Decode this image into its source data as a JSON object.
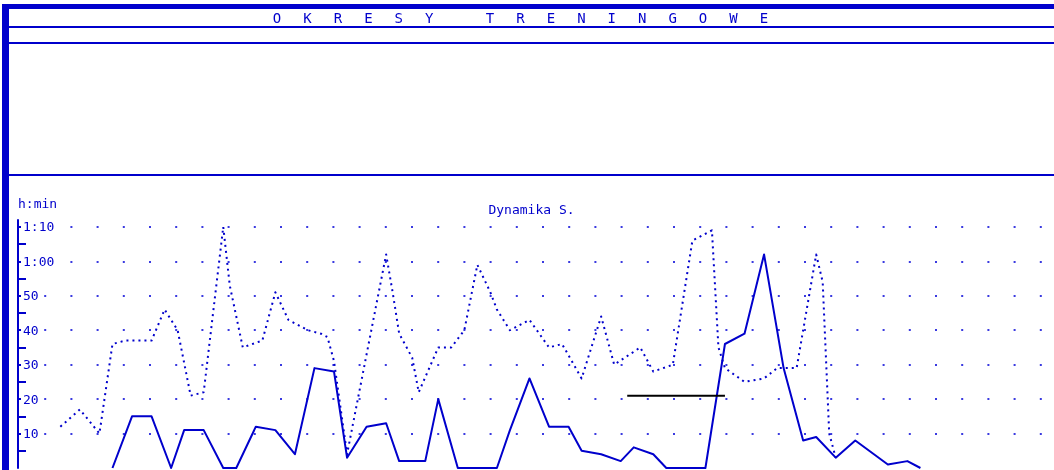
{
  "chart_data": {
    "type": "line",
    "title": "OKRESY TRENINGOWE",
    "subtitle": "Dynamika S.",
    "ylabel": "h:min",
    "categories": [
      null,
      null,
      null,
      null,
      null,
      null,
      null,
      null,
      null,
      null,
      null,
      null,
      null,
      null,
      null,
      null,
      null,
      null,
      null,
      null,
      null,
      null,
      null,
      null,
      null,
      null,
      null,
      null,
      null,
      null,
      null,
      null,
      null,
      null,
      null,
      null,
      null,
      null,
      null,
      null,
      null,
      null,
      null,
      null,
      null,
      null,
      null,
      null,
      null,
      null,
      null,
      null,
      null,
      null,
      null,
      null,
      null,
      null,
      null,
      null,
      null,
      null,
      null,
      null,
      null,
      null,
      null,
      null,
      null,
      null,
      null,
      null,
      null,
      null,
      null,
      null,
      null,
      null,
      null,
      null,
      null,
      null,
      null,
      null,
      null,
      null,
      null,
      null,
      null,
      null,
      null,
      null,
      null,
      null,
      null,
      null,
      null,
      null,
      null,
      null,
      null,
      null,
      null,
      null,
      null,
      null,
      null,
      null,
      null,
      null,
      null,
      null,
      null,
      null,
      null,
      null,
      null,
      null,
      null,
      null,
      null,
      null,
      null,
      null,
      null,
      null,
      null,
      null,
      null,
      null,
      null,
      null,
      null,
      null,
      null,
      null,
      null,
      null,
      null,
      null,
      null,
      null,
      null,
      null,
      null,
      null,
      null,
      null,
      null,
      null,
      null,
      null,
      null,
      null,
      null,
      null,
      null,
      null,
      null
    ],
    "ylim": [
      0,
      72
    ],
    "yticks": [
      {
        "value": 5,
        "label": null
      },
      10,
      {
        "value": 15,
        "label": null
      },
      20,
      {
        "value": 25,
        "label": null
      },
      30,
      {
        "value": 35,
        "label": null
      },
      40,
      {
        "value": 45,
        "label": null
      },
      50,
      {
        "value": 55,
        "label": null
      },
      {
        "value": 60,
        "label": "1:00"
      },
      {
        "value": 65,
        "label": null
      },
      {
        "value": 70,
        "label": "1:10"
      }
    ],
    "tick_labels": "y",
    "grid": "y",
    "series": [
      {
        "color": "#0000cc",
        "line_style": "dotted",
        "values": [
          null,
          null,
          null,
          null,
          null,
          null,
          12,
          null,
          null,
          17,
          null,
          null,
          10,
          null,
          36,
          null,
          37,
          null,
          null,
          null,
          37,
          null,
          46,
          null,
          40,
          null,
          21,
          null,
          22,
          null,
          null,
          70,
          53,
          null,
          35,
          null,
          null,
          37,
          null,
          51,
          null,
          43,
          null,
          null,
          40,
          null,
          39,
          38,
          31,
          null,
          4,
          null,
          null,
          null,
          null,
          null,
          62,
          51,
          39,
          null,
          32,
          22,
          null,
          null,
          35,
          null,
          35,
          null,
          40,
          null,
          59,
          null,
          51,
          46,
          null,
          40,
          null,
          null,
          43,
          null,
          null,
          35,
          null,
          36,
          null,
          null,
          26,
          32,
          null,
          44,
          null,
          30,
          null,
          null,
          null,
          35,
          null,
          28,
          null,
          null,
          30,
          null,
          null,
          66,
          null,
          null,
          69,
          35,
          29,
          null,
          null,
          25,
          null,
          null,
          26,
          null,
          29,
          null,
          null,
          29,
          null,
          null,
          62,
          54,
          10,
          3,
          null,
          null,
          null,
          null,
          null,
          null,
          null,
          null,
          null,
          null,
          null,
          null,
          null,
          null,
          null,
          null,
          null,
          null,
          null,
          null,
          null,
          null,
          null,
          null,
          null,
          null,
          null,
          null,
          null,
          null,
          null,
          null,
          null
        ]
      },
      {
        "color": "#0000cc",
        "line_style": "solid",
        "values": [
          null,
          null,
          null,
          null,
          null,
          null,
          null,
          null,
          null,
          null,
          null,
          null,
          null,
          null,
          0,
          null,
          null,
          15,
          null,
          null,
          15,
          null,
          null,
          0,
          null,
          11,
          null,
          null,
          11,
          null,
          null,
          0,
          null,
          0,
          null,
          null,
          12,
          null,
          null,
          11,
          null,
          null,
          4,
          null,
          null,
          29,
          null,
          null,
          28,
          null,
          3,
          null,
          null,
          12,
          null,
          null,
          13,
          null,
          2,
          null,
          null,
          null,
          2,
          null,
          20,
          null,
          null,
          0,
          null,
          null,
          null,
          null,
          null,
          0,
          null,
          11,
          null,
          null,
          26,
          null,
          null,
          12,
          null,
          null,
          12,
          null,
          5,
          null,
          null,
          4,
          null,
          null,
          2,
          null,
          6,
          null,
          null,
          4,
          null,
          0,
          null,
          null,
          null,
          null,
          null,
          0,
          null,
          null,
          36,
          null,
          null,
          39,
          null,
          null,
          62,
          null,
          null,
          29,
          null,
          null,
          8,
          null,
          9,
          null,
          null,
          3,
          null,
          null,
          8,
          null,
          null,
          null,
          null,
          1,
          null,
          null,
          2,
          null,
          0,
          null,
          null,
          null,
          null,
          null,
          null,
          null,
          null,
          null,
          null,
          null,
          null,
          null,
          null,
          null,
          null,
          null,
          null,
          null,
          null
        ]
      },
      {
        "color": "#000000",
        "line_style": "solid",
        "values": [
          null,
          null,
          null,
          null,
          null,
          null,
          null,
          null,
          null,
          null,
          null,
          null,
          null,
          null,
          null,
          null,
          null,
          null,
          null,
          null,
          null,
          null,
          null,
          null,
          null,
          null,
          null,
          null,
          null,
          null,
          null,
          null,
          null,
          null,
          null,
          null,
          null,
          null,
          null,
          null,
          null,
          null,
          null,
          null,
          null,
          null,
          null,
          null,
          null,
          null,
          null,
          null,
          null,
          null,
          null,
          null,
          null,
          null,
          null,
          null,
          null,
          null,
          null,
          null,
          null,
          null,
          null,
          null,
          null,
          null,
          null,
          null,
          null,
          null,
          null,
          null,
          null,
          null,
          null,
          null,
          null,
          null,
          null,
          null,
          null,
          null,
          null,
          null,
          null,
          null,
          null,
          null,
          null,
          21,
          null,
          null,
          null,
          null,
          null,
          null,
          null,
          null,
          null,
          null,
          null,
          null,
          null,
          null,
          21,
          null,
          null,
          null,
          null,
          null,
          null,
          null,
          null,
          null,
          null,
          null,
          null,
          null,
          null,
          null,
          null,
          null,
          null,
          null,
          null,
          null,
          null,
          null,
          null,
          null,
          null,
          null,
          null,
          null,
          null,
          null,
          null,
          null,
          null,
          null,
          null,
          null,
          null,
          null,
          null,
          null,
          null,
          null,
          null,
          null,
          null,
          null,
          null,
          null,
          null
        ]
      }
    ]
  }
}
